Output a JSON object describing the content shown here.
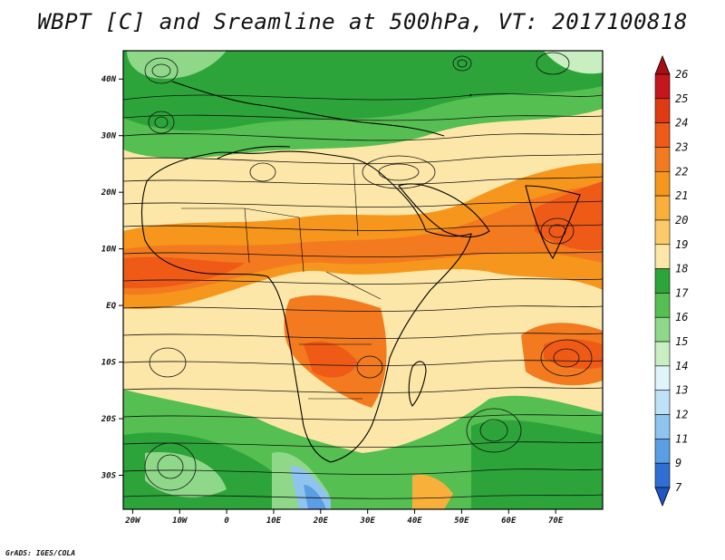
{
  "title": "WBPT [C] and Sreamline at 500hPa, VT: 2017100818",
  "credit": "GrADS: IGES/COLA",
  "map": {
    "lat_labels": [
      "40N",
      "30N",
      "20N",
      "10N",
      "EQ",
      "10S",
      "20S",
      "30S"
    ],
    "lat_values": [
      40,
      30,
      20,
      10,
      0,
      -10,
      -20,
      -30
    ],
    "lon_labels": [
      "20W",
      "10W",
      "0",
      "10E",
      "20E",
      "30E",
      "40E",
      "50E",
      "60E",
      "70E"
    ],
    "lon_values": [
      -20,
      -10,
      0,
      10,
      20,
      30,
      40,
      50,
      60,
      70
    ],
    "lon_range": [
      -22,
      80
    ],
    "lat_range": [
      -36,
      45
    ]
  },
  "colorbar": {
    "labels": [
      "26",
      "25",
      "24",
      "23",
      "22",
      "21",
      "20",
      "19",
      "18",
      "17",
      "16",
      "15",
      "14",
      "13",
      "12",
      "11",
      "9",
      "7"
    ],
    "colors": [
      "#a50f15",
      "#c4161c",
      "#e03a13",
      "#ef5a17",
      "#f47a1f",
      "#f7961c",
      "#f9b03a",
      "#fbcb6a",
      "#fde7a8",
      "#2ca43a",
      "#55bf52",
      "#8fd88a",
      "#c8eec2",
      "#e0f5fb",
      "#bfe1f7",
      "#8fc4ee",
      "#5a9ee3",
      "#2f6fd4",
      "#1f56c4"
    ]
  },
  "icons": {
    "colorbar_top": "triangle-up-icon",
    "colorbar_bottom": "triangle-down-icon"
  }
}
